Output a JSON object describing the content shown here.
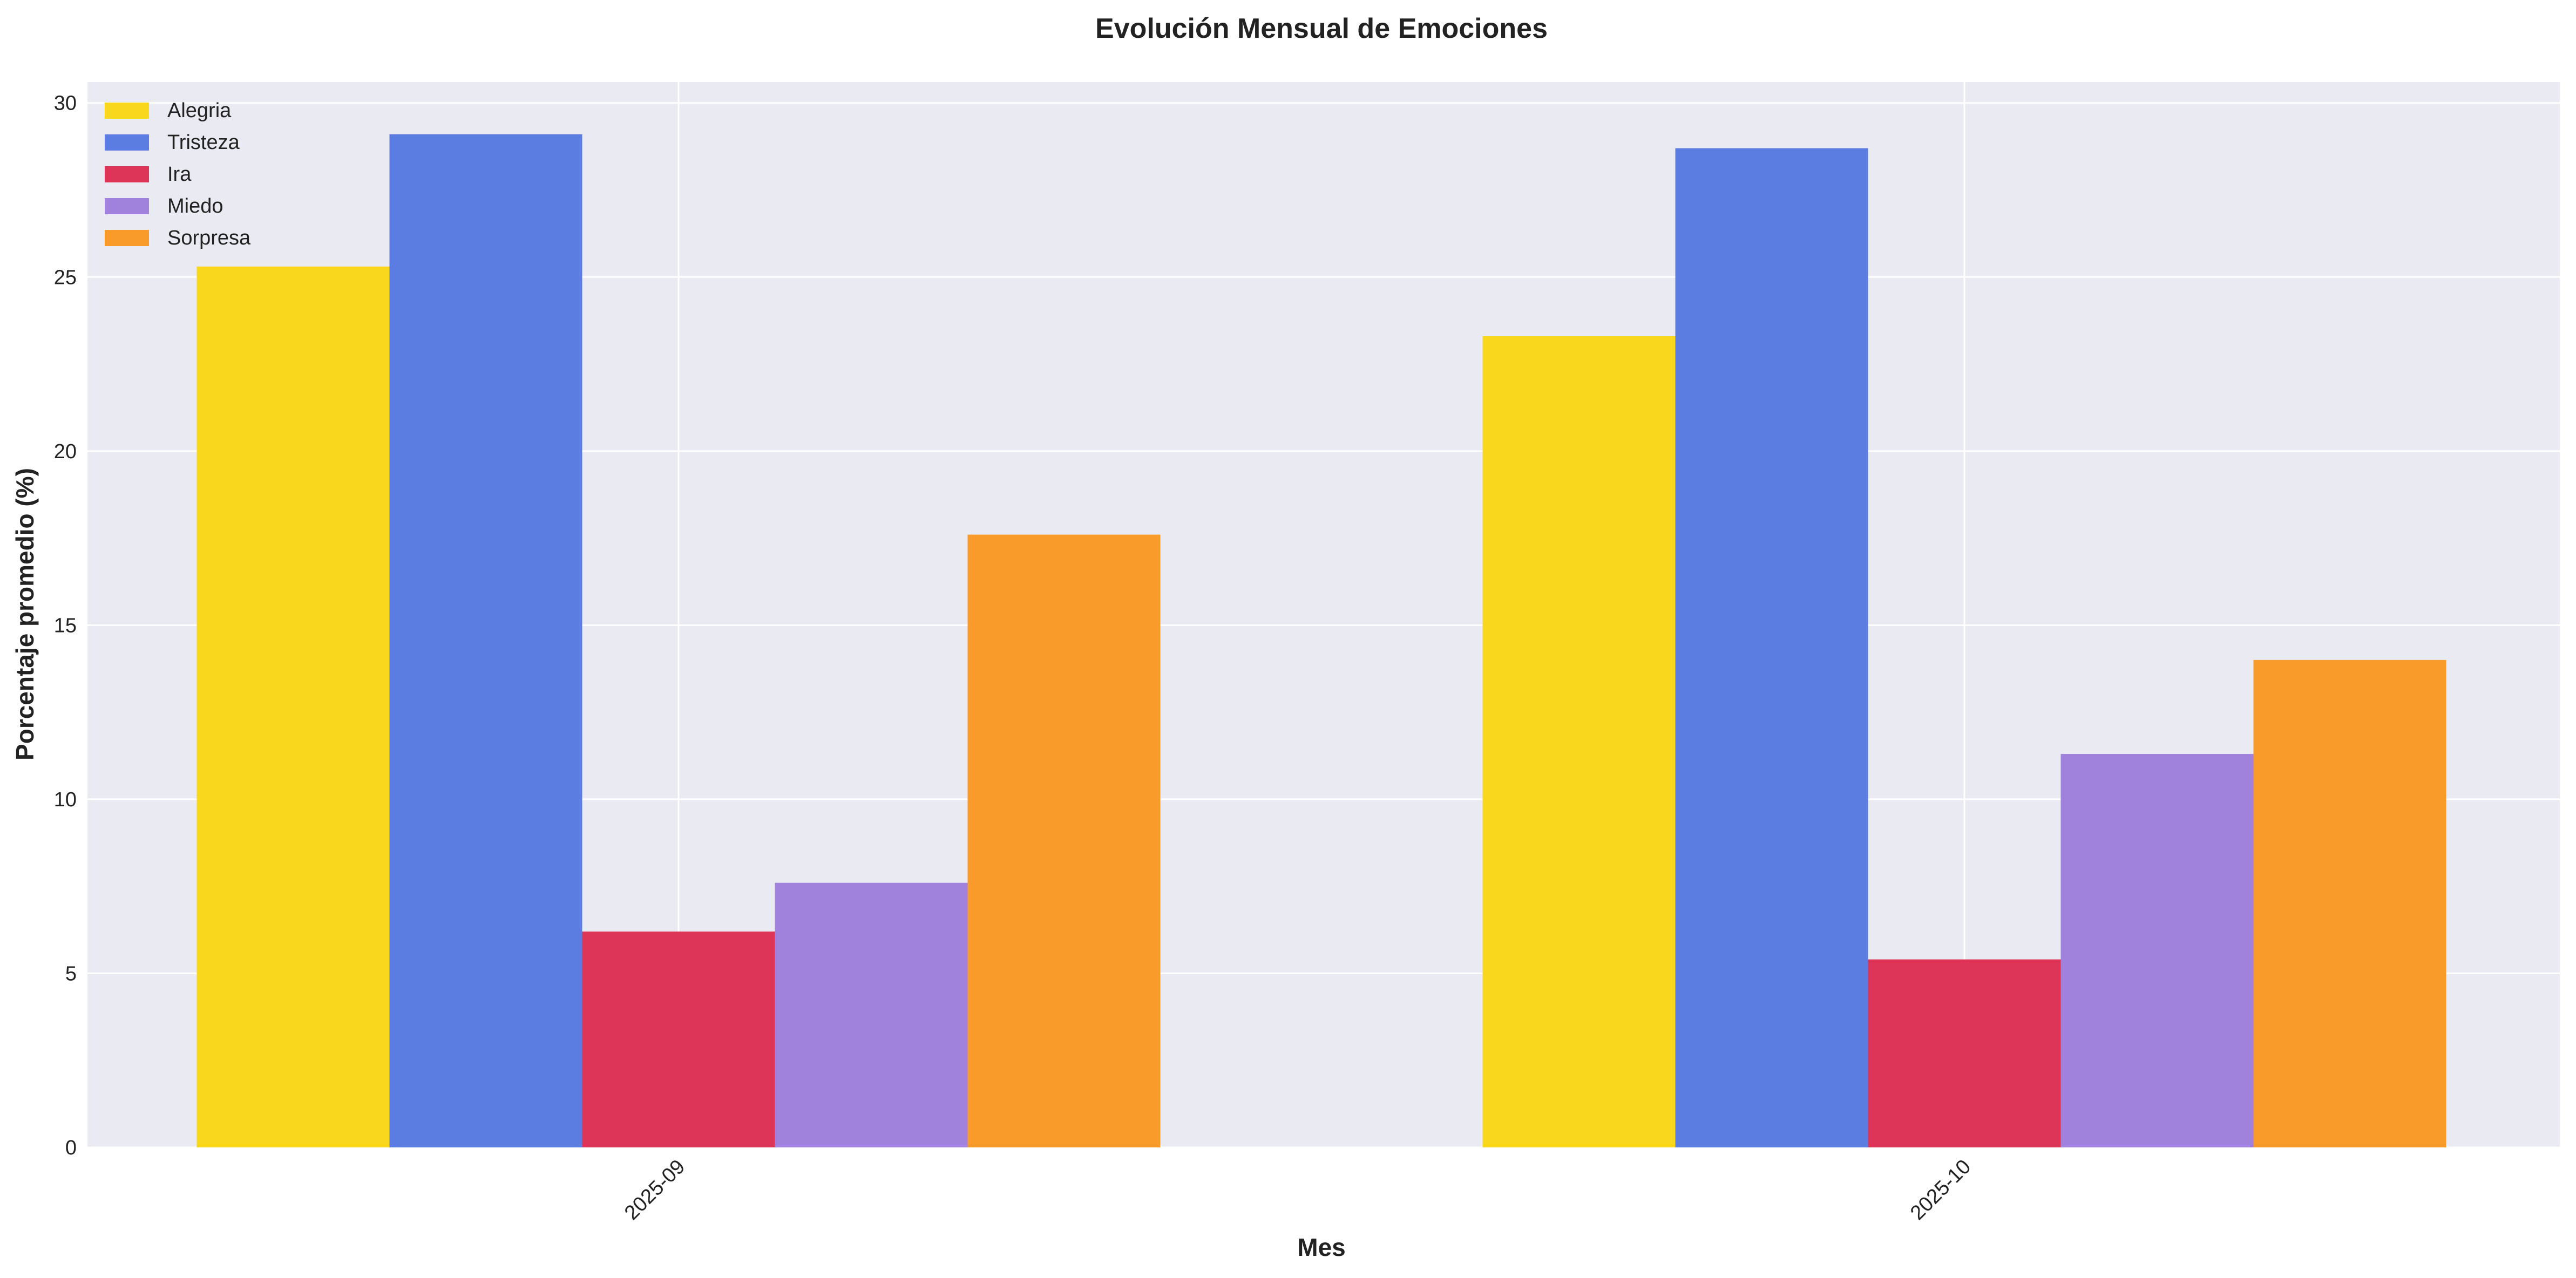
{
  "chart_data": {
    "type": "bar",
    "title": "Evolución Mensual de Emociones",
    "xlabel": "Mes",
    "ylabel": "Porcentaje promedio (%)",
    "categories": [
      "2025-09",
      "2025-10"
    ],
    "series": [
      {
        "name": "Alegria",
        "values": [
          25.3,
          23.3
        ],
        "color": "#f9d71c"
      },
      {
        "name": "Tristeza",
        "values": [
          29.1,
          28.7
        ],
        "color": "#5b7de2"
      },
      {
        "name": "Ira",
        "values": [
          6.2,
          5.4
        ],
        "color": "#dc3558"
      },
      {
        "name": "Miedo",
        "values": [
          7.6,
          11.3
        ],
        "color": "#a082dd"
      },
      {
        "name": "Sorpresa",
        "values": [
          17.6,
          14.0
        ],
        "color": "#f99b2a"
      }
    ],
    "ylim": [
      0,
      30.6
    ],
    "yticks": [
      0,
      5,
      10,
      15,
      20,
      25,
      30
    ],
    "grid": true,
    "legend_position": "top-left",
    "plot_background": "#eaeaf2"
  }
}
